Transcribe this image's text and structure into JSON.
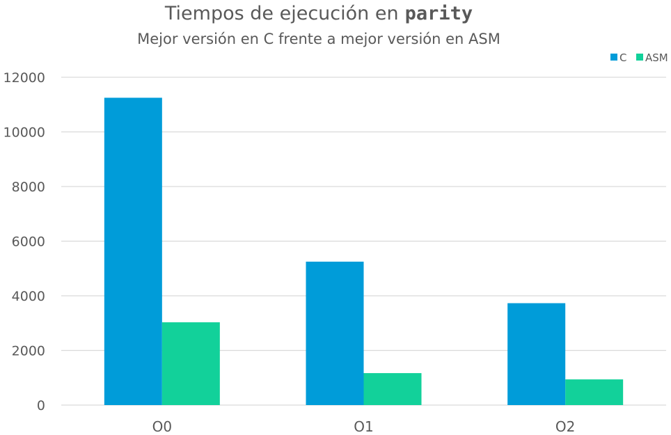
{
  "chart_data": {
    "type": "bar",
    "title": "Tiempos de ejecución en",
    "title_code": "parity",
    "subtitle": "Mejor versión en C frente a mejor versión en ASM",
    "categories": [
      "O0",
      "O1",
      "O2"
    ],
    "series": [
      {
        "name": "C",
        "color": "#009cd9",
        "values": [
          11250,
          5250,
          3730
        ]
      },
      {
        "name": "ASM",
        "color": "#12d19a",
        "values": [
          3030,
          1170,
          940
        ]
      }
    ],
    "ylim": [
      0,
      12000
    ],
    "yticks": [
      "0",
      "2000",
      "4000",
      "6000",
      "8000",
      "10000",
      "12000"
    ],
    "grid": true,
    "legend_position": "top-right"
  }
}
